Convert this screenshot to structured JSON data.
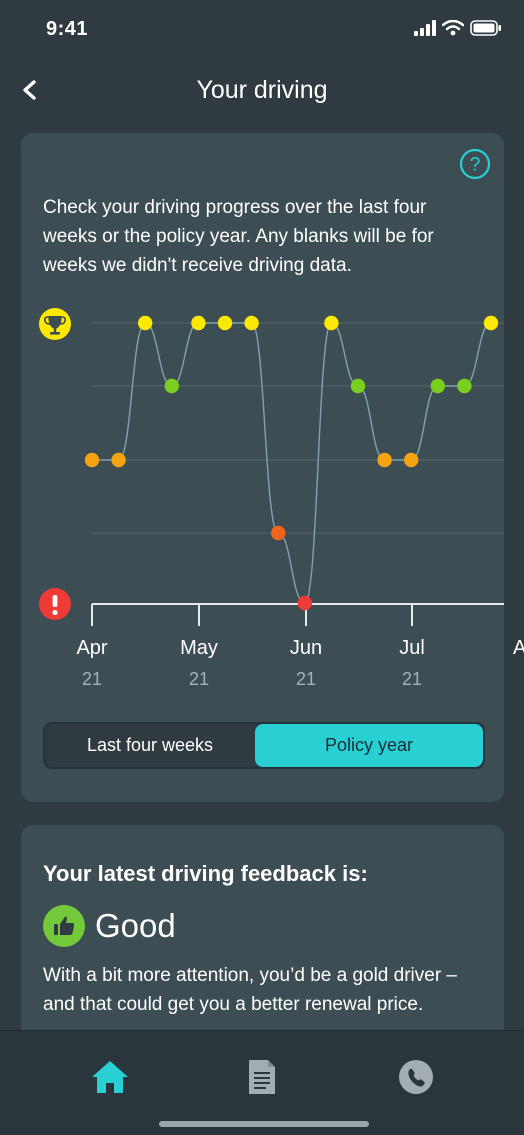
{
  "status_bar": {
    "time": "9:41"
  },
  "header": {
    "title": "Your driving"
  },
  "progress_card": {
    "description": "Check your driving progress over the last four weeks or the policy year. Any blanks will be for weeks we didn't receive driving data.",
    "toggle": {
      "options": [
        "Last four weeks",
        "Policy year"
      ],
      "selected": "Policy year"
    }
  },
  "chart_data": {
    "type": "line",
    "levels": [
      "red",
      "orange",
      "amber",
      "green",
      "gold"
    ],
    "x_ticks": [
      {
        "label": "Apr",
        "year": "21"
      },
      {
        "label": "May",
        "year": "21"
      },
      {
        "label": "Jun",
        "year": "21"
      },
      {
        "label": "Jul",
        "year": "21"
      },
      {
        "label": "A",
        "year": ""
      }
    ],
    "series": [
      {
        "values": [
          2,
          2,
          4,
          3,
          4,
          4,
          4,
          1,
          0,
          4,
          3,
          2,
          2,
          3,
          3,
          4
        ]
      }
    ],
    "colors": {
      "0": "#ef3b35",
      "1": "#f2661c",
      "2": "#f5a310",
      "3": "#79cf1e",
      "4": "#fde800"
    },
    "icons": {
      "top": "trophy-icon",
      "bottom": "warning-icon"
    }
  },
  "feedback": {
    "title": "Your latest driving feedback is:",
    "rating": "Good",
    "message": "With a bit more attention, you’d be a gold driver – and that could get you a better renewal price.",
    "badge_icon": "thumbs-up-icon"
  },
  "tab_bar": {
    "items": [
      {
        "icon": "home-icon",
        "active": true
      },
      {
        "icon": "document-icon",
        "active": false
      },
      {
        "icon": "phone-icon",
        "active": false
      }
    ],
    "active_color": "#28d0d4",
    "inactive_color": "#a3adb2"
  }
}
